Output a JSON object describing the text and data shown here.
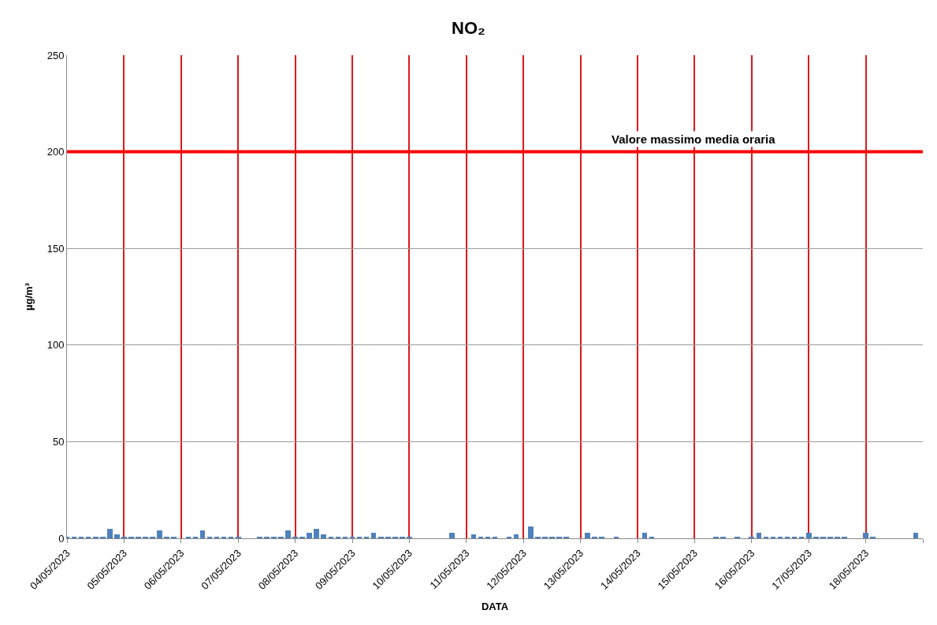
{
  "chart_data": {
    "type": "bar",
    "title": "NO₂",
    "xlabel": "DATA",
    "ylabel": "µg/m³",
    "x": [
      "2023-05-04T00:00",
      "2023-05-04T03:00",
      "2023-05-04T06:00",
      "2023-05-04T09:00",
      "2023-05-04T12:00",
      "2023-05-04T15:00",
      "2023-05-04T18:00",
      "2023-05-04T21:00",
      "2023-05-05T00:00",
      "2023-05-05T03:00",
      "2023-05-05T06:00",
      "2023-05-05T09:00",
      "2023-05-05T12:00",
      "2023-05-05T15:00",
      "2023-05-05T18:00",
      "2023-05-05T21:00",
      "2023-05-06T00:00",
      "2023-05-06T03:00",
      "2023-05-06T06:00",
      "2023-05-06T09:00",
      "2023-05-06T12:00",
      "2023-05-06T15:00",
      "2023-05-06T18:00",
      "2023-05-06T21:00",
      "2023-05-07T00:00",
      "2023-05-07T03:00",
      "2023-05-07T06:00",
      "2023-05-07T09:00",
      "2023-05-07T12:00",
      "2023-05-07T15:00",
      "2023-05-07T18:00",
      "2023-05-07T21:00",
      "2023-05-08T00:00",
      "2023-05-08T03:00",
      "2023-05-08T06:00",
      "2023-05-08T09:00",
      "2023-05-08T12:00",
      "2023-05-08T15:00",
      "2023-05-08T18:00",
      "2023-05-08T21:00",
      "2023-05-09T00:00",
      "2023-05-09T03:00",
      "2023-05-09T06:00",
      "2023-05-09T09:00",
      "2023-05-09T12:00",
      "2023-05-09T15:00",
      "2023-05-09T18:00",
      "2023-05-09T21:00",
      "2023-05-10T00:00",
      "2023-05-10T03:00",
      "2023-05-10T06:00",
      "2023-05-10T09:00",
      "2023-05-10T12:00",
      "2023-05-10T15:00",
      "2023-05-10T18:00",
      "2023-05-10T21:00",
      "2023-05-11T00:00",
      "2023-05-11T03:00",
      "2023-05-11T06:00",
      "2023-05-11T09:00",
      "2023-05-11T12:00",
      "2023-05-11T15:00",
      "2023-05-11T18:00",
      "2023-05-11T21:00",
      "2023-05-12T00:00",
      "2023-05-12T03:00",
      "2023-05-12T06:00",
      "2023-05-12T09:00",
      "2023-05-12T12:00",
      "2023-05-12T15:00",
      "2023-05-12T18:00",
      "2023-05-12T21:00",
      "2023-05-13T00:00",
      "2023-05-13T03:00",
      "2023-05-13T06:00",
      "2023-05-13T09:00",
      "2023-05-13T12:00",
      "2023-05-13T15:00",
      "2023-05-13T18:00",
      "2023-05-13T21:00",
      "2023-05-14T00:00",
      "2023-05-14T03:00",
      "2023-05-14T06:00",
      "2023-05-14T09:00",
      "2023-05-14T12:00",
      "2023-05-14T15:00",
      "2023-05-14T18:00",
      "2023-05-14T21:00",
      "2023-05-15T00:00",
      "2023-05-15T03:00",
      "2023-05-15T06:00",
      "2023-05-15T09:00",
      "2023-05-15T12:00",
      "2023-05-15T15:00",
      "2023-05-15T18:00",
      "2023-05-15T21:00",
      "2023-05-16T00:00",
      "2023-05-16T03:00",
      "2023-05-16T06:00",
      "2023-05-16T09:00",
      "2023-05-16T12:00",
      "2023-05-16T15:00",
      "2023-05-16T18:00",
      "2023-05-16T21:00",
      "2023-05-17T00:00",
      "2023-05-17T03:00",
      "2023-05-17T06:00",
      "2023-05-17T09:00",
      "2023-05-17T12:00",
      "2023-05-17T15:00",
      "2023-05-17T18:00",
      "2023-05-17T21:00",
      "2023-05-18T00:00",
      "2023-05-18T03:00",
      "2023-05-18T06:00",
      "2023-05-18T09:00",
      "2023-05-18T12:00",
      "2023-05-18T15:00",
      "2023-05-18T18:00",
      "2023-05-18T21:00"
    ],
    "series": [
      {
        "color": "#4f81bd",
        "values": [
          1,
          0.5,
          0.5,
          1,
          1,
          1,
          5,
          2,
          1,
          0.5,
          1,
          1,
          1,
          4,
          1,
          1,
          0,
          0.5,
          1,
          4,
          1,
          1,
          1,
          1,
          1,
          0,
          0,
          1,
          0.5,
          1,
          1,
          4,
          1,
          1,
          3,
          5,
          2,
          1,
          1,
          1,
          1,
          1,
          1,
          3,
          1,
          1,
          1,
          1,
          1,
          0,
          0,
          0,
          0,
          0,
          3,
          0,
          0,
          2,
          1,
          1,
          0.5,
          0,
          0.5,
          2,
          0,
          6,
          1,
          1,
          1,
          0.5,
          1,
          0,
          0,
          3,
          1,
          1,
          0,
          0.5,
          0,
          0,
          0,
          3,
          1,
          0,
          0,
          0,
          0,
          0,
          0,
          0,
          0,
          1,
          1,
          0,
          0.5,
          0,
          1,
          3,
          1,
          1,
          1,
          1,
          1,
          1,
          3,
          1,
          1,
          1,
          1,
          0.5,
          0,
          0,
          3,
          1,
          0,
          0,
          0,
          0,
          0,
          3
        ]
      }
    ],
    "xlim": [
      "2023-05-04",
      "2023-05-19"
    ],
    "xticks": [
      {
        "value": "2023-05-04",
        "label": "04/05/2023"
      },
      {
        "value": "2023-05-05",
        "label": "05/05/2023"
      },
      {
        "value": "2023-05-06",
        "label": "06/05/2023"
      },
      {
        "value": "2023-05-07",
        "label": "07/05/2023"
      },
      {
        "value": "2023-05-08",
        "label": "08/05/2023"
      },
      {
        "value": "2023-05-09",
        "label": "09/05/2023"
      },
      {
        "value": "2023-05-10",
        "label": "10/05/2023"
      },
      {
        "value": "2023-05-11",
        "label": "11/05/2023"
      },
      {
        "value": "2023-05-12",
        "label": "12/05/2023"
      },
      {
        "value": "2023-05-13",
        "label": "13/05/2023"
      },
      {
        "value": "2023-05-14",
        "label": "14/05/2023"
      },
      {
        "value": "2023-05-15",
        "label": "15/05/2023"
      },
      {
        "value": "2023-05-16",
        "label": "16/05/2023"
      },
      {
        "value": "2023-05-17",
        "label": "17/05/2023"
      },
      {
        "value": "2023-05-18",
        "label": "18/05/2023"
      },
      {
        "value": "2023-05-19",
        "label": null
      }
    ],
    "ylim": [
      0,
      250
    ],
    "yticks": [
      0,
      50,
      100,
      150,
      200,
      250
    ],
    "ref_lines": [
      {
        "axis": "y",
        "value": 200,
        "label": "Valore massimo media oraria",
        "color": "#ff0000"
      }
    ],
    "grid": true
  }
}
